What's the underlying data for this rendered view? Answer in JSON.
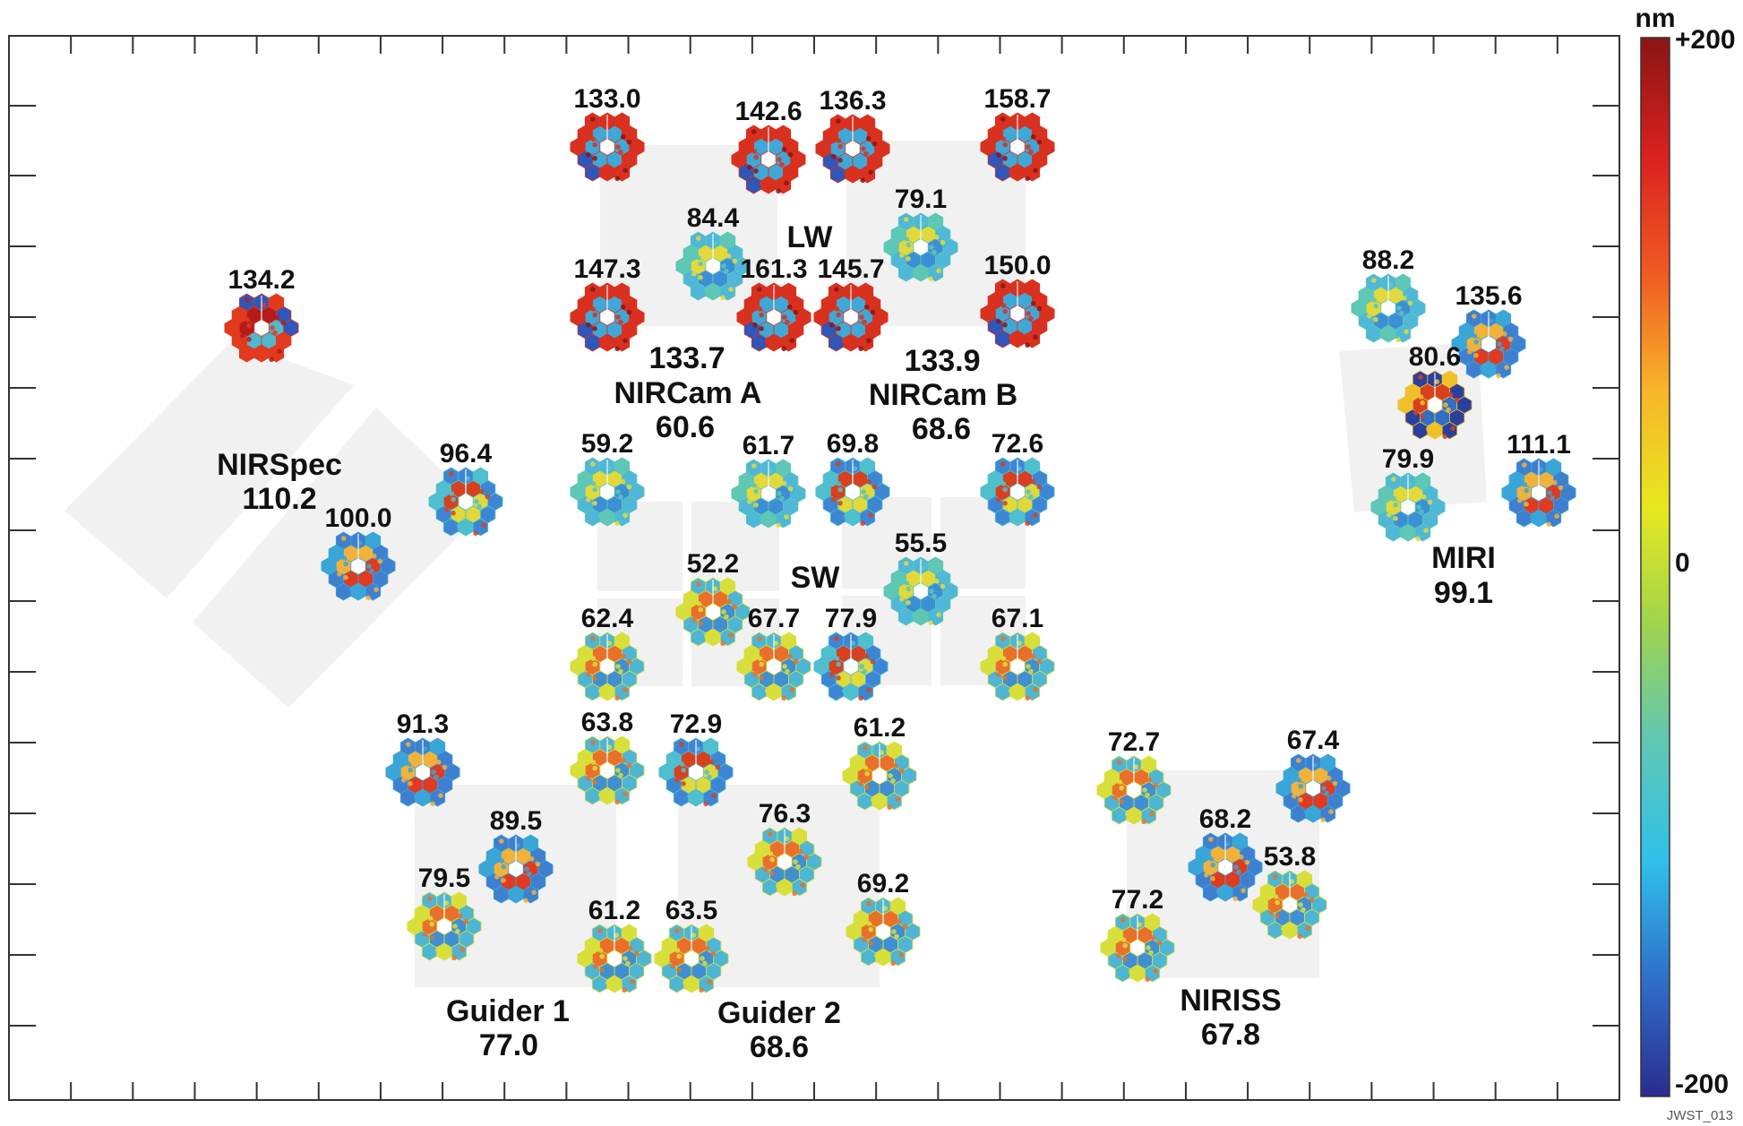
{
  "colorbar": {
    "unit": "nm",
    "max_label": "+200",
    "mid_label": "0",
    "min_label": "-200",
    "min_value": -200,
    "max_value": 200,
    "colors": [
      "#2b2c8f",
      "#2f6fc9",
      "#30c0ea",
      "#5fc7b4",
      "#9fd34e",
      "#e6e81f",
      "#f8b52a",
      "#f05a22",
      "#d9211f",
      "#8a1515"
    ]
  },
  "credit": "JWST_013",
  "instruments": [
    {
      "id": "nirspec",
      "name": "NIRSpec",
      "value": "110.2"
    },
    {
      "id": "nircam-a",
      "name": "NIRCam A",
      "value": "60.6"
    },
    {
      "id": "nircam-b",
      "name": "NIRCam B",
      "value": "68.6"
    },
    {
      "id": "miri",
      "name": "MIRI",
      "value": "99.1"
    },
    {
      "id": "guider-1",
      "name": "Guider 1",
      "value": "77.0"
    },
    {
      "id": "guider-2",
      "name": "Guider 2",
      "value": "68.6"
    },
    {
      "id": "niriss",
      "name": "NIRISS",
      "value": "67.8"
    }
  ],
  "module_labels": [
    {
      "id": "lw",
      "text": "LW"
    },
    {
      "id": "sw",
      "text": "SW"
    },
    {
      "id": "nircam-lw-value",
      "text": "133.7"
    },
    {
      "id": "nircam-lw-value-b",
      "text": "133.9"
    }
  ],
  "wavefronts": [
    {
      "value": "134.2",
      "pattern": "red-low",
      "icon": "wavefront-hexagon-icon"
    },
    {
      "value": "96.4",
      "pattern": "mixed",
      "icon": "wavefront-hexagon-icon"
    },
    {
      "value": "100.0",
      "pattern": "red-center",
      "icon": "wavefront-hexagon-icon"
    },
    {
      "value": "133.0",
      "pattern": "red-ring",
      "icon": "wavefront-hexagon-icon"
    },
    {
      "value": "142.6",
      "pattern": "red-ring",
      "icon": "wavefront-hexagon-icon"
    },
    {
      "value": "136.3",
      "pattern": "red-ring",
      "icon": "wavefront-hexagon-icon"
    },
    {
      "value": "158.7",
      "pattern": "red-ring",
      "icon": "wavefront-hexagon-icon"
    },
    {
      "value": "84.4",
      "pattern": "cyan",
      "icon": "wavefront-hexagon-icon"
    },
    {
      "value": "79.1",
      "pattern": "cyan",
      "icon": "wavefront-hexagon-icon"
    },
    {
      "value": "147.3",
      "pattern": "red-ring",
      "icon": "wavefront-hexagon-icon"
    },
    {
      "value": "161.3",
      "pattern": "red-ring",
      "icon": "wavefront-hexagon-icon"
    },
    {
      "value": "145.7",
      "pattern": "red-ring",
      "icon": "wavefront-hexagon-icon"
    },
    {
      "value": "150.0",
      "pattern": "red-ring",
      "icon": "wavefront-hexagon-icon"
    },
    {
      "value": "59.2",
      "pattern": "cyan",
      "icon": "wavefront-hexagon-icon"
    },
    {
      "value": "61.7",
      "pattern": "cyan",
      "icon": "wavefront-hexagon-icon"
    },
    {
      "value": "69.8",
      "pattern": "mixed",
      "icon": "wavefront-hexagon-icon"
    },
    {
      "value": "72.6",
      "pattern": "mixed",
      "icon": "wavefront-hexagon-icon"
    },
    {
      "value": "52.2",
      "pattern": "yellow",
      "icon": "wavefront-hexagon-icon"
    },
    {
      "value": "55.5",
      "pattern": "cyan",
      "icon": "wavefront-hexagon-icon"
    },
    {
      "value": "62.4",
      "pattern": "yellow",
      "icon": "wavefront-hexagon-icon"
    },
    {
      "value": "67.7",
      "pattern": "yellow",
      "icon": "wavefront-hexagon-icon"
    },
    {
      "value": "77.9",
      "pattern": "mixed",
      "icon": "wavefront-hexagon-icon"
    },
    {
      "value": "67.1",
      "pattern": "yellow",
      "icon": "wavefront-hexagon-icon"
    },
    {
      "value": "91.3",
      "pattern": "red-center",
      "icon": "wavefront-hexagon-icon"
    },
    {
      "value": "63.8",
      "pattern": "yellow",
      "icon": "wavefront-hexagon-icon"
    },
    {
      "value": "72.9",
      "pattern": "mixed",
      "icon": "wavefront-hexagon-icon"
    },
    {
      "value": "61.2",
      "pattern": "yellow",
      "icon": "wavefront-hexagon-icon"
    },
    {
      "value": "89.5",
      "pattern": "red-center",
      "icon": "wavefront-hexagon-icon"
    },
    {
      "value": "76.3",
      "pattern": "yellow",
      "icon": "wavefront-hexagon-icon"
    },
    {
      "value": "79.5",
      "pattern": "yellow",
      "icon": "wavefront-hexagon-icon"
    },
    {
      "value": "69.2",
      "pattern": "yellow",
      "icon": "wavefront-hexagon-icon"
    },
    {
      "value": "61.2",
      "pattern": "yellow",
      "icon": "wavefront-hexagon-icon"
    },
    {
      "value": "63.5",
      "pattern": "yellow",
      "icon": "wavefront-hexagon-icon"
    },
    {
      "value": "88.2",
      "pattern": "cyan",
      "icon": "wavefront-hexagon-icon"
    },
    {
      "value": "135.6",
      "pattern": "red-center",
      "icon": "wavefront-hexagon-icon"
    },
    {
      "value": "80.6",
      "pattern": "blue",
      "icon": "wavefront-hexagon-icon"
    },
    {
      "value": "79.9",
      "pattern": "cyan",
      "icon": "wavefront-hexagon-icon"
    },
    {
      "value": "111.1",
      "pattern": "red-center",
      "icon": "wavefront-hexagon-icon"
    },
    {
      "value": "72.7",
      "pattern": "yellow",
      "icon": "wavefront-hexagon-icon"
    },
    {
      "value": "67.4",
      "pattern": "red-center",
      "icon": "wavefront-hexagon-icon"
    },
    {
      "value": "68.2",
      "pattern": "red-center",
      "icon": "wavefront-hexagon-icon"
    },
    {
      "value": "53.8",
      "pattern": "yellow",
      "icon": "wavefront-hexagon-icon"
    },
    {
      "value": "77.2",
      "pattern": "yellow",
      "icon": "wavefront-hexagon-icon"
    }
  ]
}
